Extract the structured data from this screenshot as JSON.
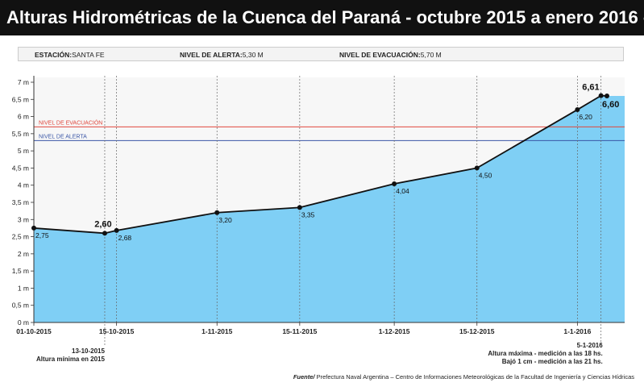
{
  "header": {
    "title": "Alturas Hidrométricas de la Cuenca del Paraná - octubre 2015 a enero 2016 -"
  },
  "info": {
    "station_label": "ESTACIÓN:",
    "station_value": "SANTA FE",
    "alert_label": "NIVEL DE ALERTA:",
    "alert_value": "5,30 M",
    "evac_label": "NIVEL DE EVACUACIÓN:",
    "evac_value": "5,70 M"
  },
  "footer": {
    "source_label": "Fuente/",
    "source_text": "Prefectura Naval Argentina – Centro de Informaciones Meteorológicas de la Facultad de Ingeniería y Ciencias Hídricas"
  },
  "chart_data": {
    "type": "area",
    "title": "Alturas Hidrométricas de la Cuenca del Paraná - octubre 2015 a enero 2016 -",
    "xlabel": "",
    "ylabel": "",
    "ylim": [
      0,
      7
    ],
    "yticks": [
      0,
      0.5,
      1,
      1.5,
      2,
      2.5,
      3,
      3.5,
      4,
      4.5,
      5,
      5.5,
      6,
      6.5,
      7
    ],
    "ytick_labels": [
      "0 m",
      "0,5 m",
      "1 m",
      "1,5 m",
      "2 m",
      "2,5 m",
      "3 m",
      "3,5 m",
      "4 m",
      "4,5 m",
      "5 m",
      "5,5 m",
      "6 m",
      "6,5 m",
      "7 m"
    ],
    "xlim": [
      "2015-10-01",
      "2016-01-09"
    ],
    "xticks": [
      "2015-10-01",
      "2015-10-15",
      "2015-11-01",
      "2015-11-15",
      "2015-12-01",
      "2015-12-15",
      "2016-01-01"
    ],
    "xtick_labels": [
      "01-10-2015",
      "15-10-2015",
      "1-11-2015",
      "15-11-2015",
      "1-12-2015",
      "15-12-2015",
      "1-1-2016"
    ],
    "grid": "vertical dashed at ticks",
    "colors": {
      "area": "#7fcff5",
      "line": "#111111",
      "evacuation": "#e0473c",
      "alert": "#3a56a6"
    },
    "series": [
      {
        "points": [
          {
            "x": "2015-10-01",
            "y": 2.75,
            "label": "2,75"
          },
          {
            "x": "2015-10-13",
            "y": 2.6,
            "label": "2,60"
          },
          {
            "x": "2015-10-15",
            "y": 2.68,
            "label": "2,68"
          },
          {
            "x": "2015-11-01",
            "y": 3.2,
            "label": "3,20"
          },
          {
            "x": "2015-11-15",
            "y": 3.35,
            "label": "3,35"
          },
          {
            "x": "2015-12-01",
            "y": 4.04,
            "label": "4,04"
          },
          {
            "x": "2015-12-15",
            "y": 4.5,
            "label": "4,50"
          },
          {
            "x": "2016-01-01",
            "y": 6.2,
            "label": "6,20"
          },
          {
            "x": "2016-01-05",
            "y": 6.61,
            "label": "6,61"
          },
          {
            "x": "2016-01-06",
            "y": 6.6,
            "label": "6,60"
          }
        ]
      }
    ],
    "reference_lines": [
      {
        "y": 5.7,
        "label": "NIVEL DE EVACUACIÓN"
      },
      {
        "y": 5.3,
        "label": "NIVEL DE ALERTA"
      }
    ],
    "annotations": [
      {
        "lines": [
          "13-10-2015",
          "Altura mínima en 2015"
        ]
      },
      {
        "lines": [
          "5-1-2016",
          "Altura máxima - medición a las 18 hs.",
          "Bajó 1 cm - medición a las 21 hs."
        ]
      }
    ]
  }
}
